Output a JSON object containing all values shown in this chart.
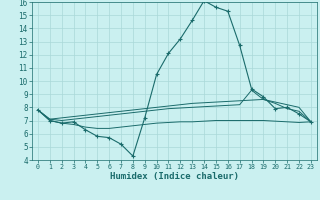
{
  "xlabel": "Humidex (Indice chaleur)",
  "bg_color": "#caf0f0",
  "grid_color": "#aad8d8",
  "line_color": "#1a6b6b",
  "xlim": [
    -0.5,
    23.5
  ],
  "ylim": [
    4,
    16
  ],
  "xticks": [
    0,
    1,
    2,
    3,
    4,
    5,
    6,
    7,
    8,
    9,
    10,
    11,
    12,
    13,
    14,
    15,
    16,
    17,
    18,
    19,
    20,
    21,
    22,
    23
  ],
  "yticks": [
    4,
    5,
    6,
    7,
    8,
    9,
    10,
    11,
    12,
    13,
    14,
    15,
    16
  ],
  "line1_x": [
    0,
    1,
    2,
    3,
    4,
    5,
    6,
    7,
    8,
    9,
    10,
    11,
    12,
    13,
    14,
    15,
    16,
    17,
    18,
    19,
    20,
    21,
    22,
    23
  ],
  "line1_y": [
    7.8,
    7.0,
    6.8,
    6.9,
    6.3,
    5.8,
    5.7,
    5.2,
    4.3,
    7.2,
    10.5,
    12.1,
    13.2,
    14.6,
    16.1,
    15.6,
    15.3,
    12.7,
    9.4,
    8.8,
    7.9,
    8.0,
    7.5,
    6.9
  ],
  "line2_x": [
    0,
    1,
    2,
    3,
    4,
    5,
    6,
    7,
    8,
    9,
    10,
    11,
    12,
    13,
    14,
    15,
    16,
    17,
    18,
    19,
    20,
    21,
    22,
    23
  ],
  "line2_y": [
    7.8,
    7.1,
    7.2,
    7.3,
    7.4,
    7.5,
    7.6,
    7.7,
    7.8,
    7.9,
    8.0,
    8.1,
    8.2,
    8.3,
    8.35,
    8.4,
    8.45,
    8.5,
    8.55,
    8.6,
    8.4,
    8.2,
    8.0,
    6.9
  ],
  "line3_x": [
    0,
    1,
    2,
    3,
    4,
    5,
    6,
    7,
    8,
    9,
    10,
    11,
    12,
    13,
    14,
    15,
    16,
    17,
    18,
    19,
    20,
    21,
    22,
    23
  ],
  "line3_y": [
    7.8,
    7.0,
    6.8,
    6.7,
    6.5,
    6.4,
    6.4,
    6.5,
    6.6,
    6.7,
    6.8,
    6.85,
    6.9,
    6.9,
    6.95,
    7.0,
    7.0,
    7.0,
    7.0,
    7.0,
    6.95,
    6.9,
    6.85,
    6.9
  ],
  "line4_x": [
    0,
    1,
    2,
    3,
    4,
    5,
    6,
    7,
    8,
    9,
    10,
    11,
    12,
    13,
    14,
    15,
    16,
    17,
    18,
    19,
    20,
    21,
    22,
    23
  ],
  "line4_y": [
    7.8,
    7.1,
    7.0,
    7.1,
    7.2,
    7.3,
    7.4,
    7.5,
    7.6,
    7.7,
    7.8,
    7.9,
    7.95,
    8.0,
    8.05,
    8.1,
    8.15,
    8.2,
    9.3,
    8.6,
    8.3,
    7.9,
    7.7,
    6.9
  ]
}
